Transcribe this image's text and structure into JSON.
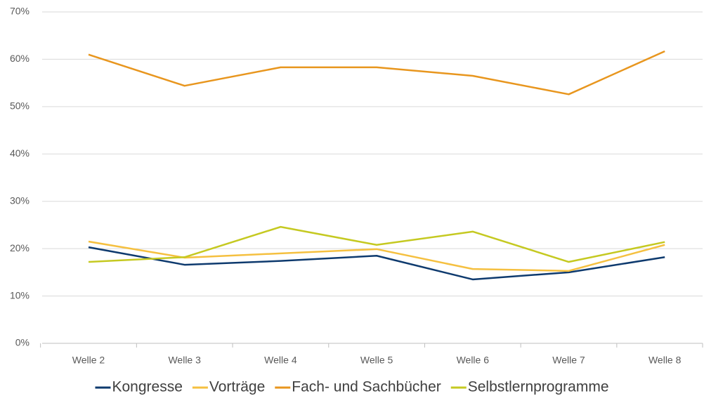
{
  "chart_data": {
    "type": "line",
    "categories": [
      "Welle 2",
      "Welle 3",
      "Welle 4",
      "Welle 5",
      "Welle 6",
      "Welle 7",
      "Welle 8"
    ],
    "series": [
      {
        "name": "Kongresse",
        "color": "#0e3a6e",
        "values": [
          20.3,
          16.6,
          17.4,
          18.5,
          13.5,
          15.0,
          18.2
        ]
      },
      {
        "name": "Vorträge",
        "color": "#f5c040",
        "values": [
          21.5,
          18.1,
          19.0,
          19.9,
          15.7,
          15.3,
          20.8
        ]
      },
      {
        "name": "Fach- und Sachbücher",
        "color": "#e8961e",
        "values": [
          61.0,
          54.4,
          58.3,
          58.3,
          56.5,
          52.6,
          61.7
        ]
      },
      {
        "name": "Selbstlernprogramme",
        "color": "#c5c921",
        "values": [
          17.2,
          18.2,
          24.6,
          20.8,
          23.6,
          17.2,
          21.4
        ]
      }
    ],
    "ylim": [
      0,
      70
    ],
    "yticks": [
      {
        "value": 0,
        "label": "0%"
      },
      {
        "value": 10,
        "label": "10%"
      },
      {
        "value": 20,
        "label": "20%"
      },
      {
        "value": 30,
        "label": "30%"
      },
      {
        "value": 40,
        "label": "40%"
      },
      {
        "value": 50,
        "label": "50%"
      },
      {
        "value": 60,
        "label": "60%"
      },
      {
        "value": 70,
        "label": "70%"
      }
    ],
    "grid": true,
    "legend": "bottom"
  }
}
